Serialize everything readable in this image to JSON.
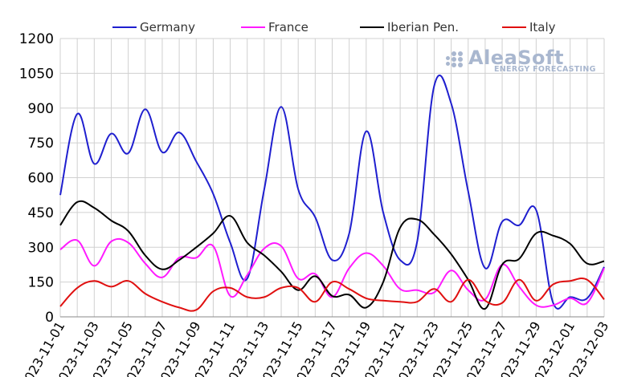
{
  "logo": {
    "main": "AleaSoft",
    "sub": "ENERGY FORECASTING"
  },
  "colors": {
    "Germany": "#1f1fcf",
    "France": "#ff1aff",
    "Iberian Pen.": "#000000",
    "Italy": "#e01010",
    "grid": "#d0d0d0"
  },
  "chart_data": {
    "type": "line",
    "title": "",
    "xlabel": "",
    "ylabel": "",
    "ylim": [
      0,
      1200
    ],
    "yticks": [
      0,
      150,
      300,
      450,
      600,
      750,
      900,
      1050,
      1200
    ],
    "grid": true,
    "legend_position": "top",
    "x": [
      "2023-11-01",
      "2023-11-02",
      "2023-11-03",
      "2023-11-04",
      "2023-11-05",
      "2023-11-06",
      "2023-11-07",
      "2023-11-08",
      "2023-11-09",
      "2023-11-10",
      "2023-11-11",
      "2023-11-12",
      "2023-11-13",
      "2023-11-14",
      "2023-11-15",
      "2023-11-16",
      "2023-11-17",
      "2023-11-18",
      "2023-11-19",
      "2023-11-20",
      "2023-11-21",
      "2023-11-22",
      "2023-11-23",
      "2023-11-24",
      "2023-11-25",
      "2023-11-26",
      "2023-11-27",
      "2023-11-28",
      "2023-11-29",
      "2023-11-30",
      "2023-12-01",
      "2023-12-02",
      "2023-12-03"
    ],
    "xtick_labels": [
      "2023-11-01",
      "2023-11-03",
      "2023-11-05",
      "2023-11-07",
      "2023-11-09",
      "2023-11-11",
      "2023-11-13",
      "2023-11-15",
      "2023-11-17",
      "2023-11-19",
      "2023-11-21",
      "2023-11-23",
      "2023-11-25",
      "2023-11-27",
      "2023-11-29",
      "2023-12-01",
      "2023-12-03"
    ],
    "series": [
      {
        "name": "Germany",
        "values": [
          525,
          875,
          660,
          790,
          705,
          895,
          710,
          795,
          670,
          530,
          320,
          165,
          550,
          905,
          550,
          430,
          245,
          360,
          800,
          450,
          245,
          325,
          995,
          920,
          540,
          210,
          410,
          395,
          460,
          60,
          85,
          80,
          215
        ]
      },
      {
        "name": "France",
        "values": [
          290,
          330,
          220,
          325,
          320,
          230,
          170,
          255,
          255,
          305,
          90,
          180,
          295,
          305,
          165,
          185,
          85,
          210,
          275,
          220,
          120,
          115,
          105,
          200,
          115,
          75,
          225,
          130,
          50,
          50,
          80,
          60,
          210
        ]
      },
      {
        "name": "Iberian Pen.",
        "values": [
          395,
          495,
          470,
          415,
          370,
          265,
          205,
          245,
          300,
          360,
          435,
          320,
          265,
          195,
          115,
          175,
          90,
          95,
          40,
          150,
          385,
          420,
          355,
          270,
          160,
          35,
          225,
          250,
          360,
          350,
          315,
          230,
          240
        ]
      },
      {
        "name": "Italy",
        "values": [
          45,
          125,
          155,
          130,
          155,
          100,
          65,
          40,
          30,
          110,
          125,
          85,
          85,
          125,
          125,
          65,
          150,
          120,
          80,
          70,
          65,
          65,
          120,
          65,
          160,
          70,
          60,
          160,
          70,
          140,
          155,
          160,
          75
        ]
      }
    ]
  }
}
